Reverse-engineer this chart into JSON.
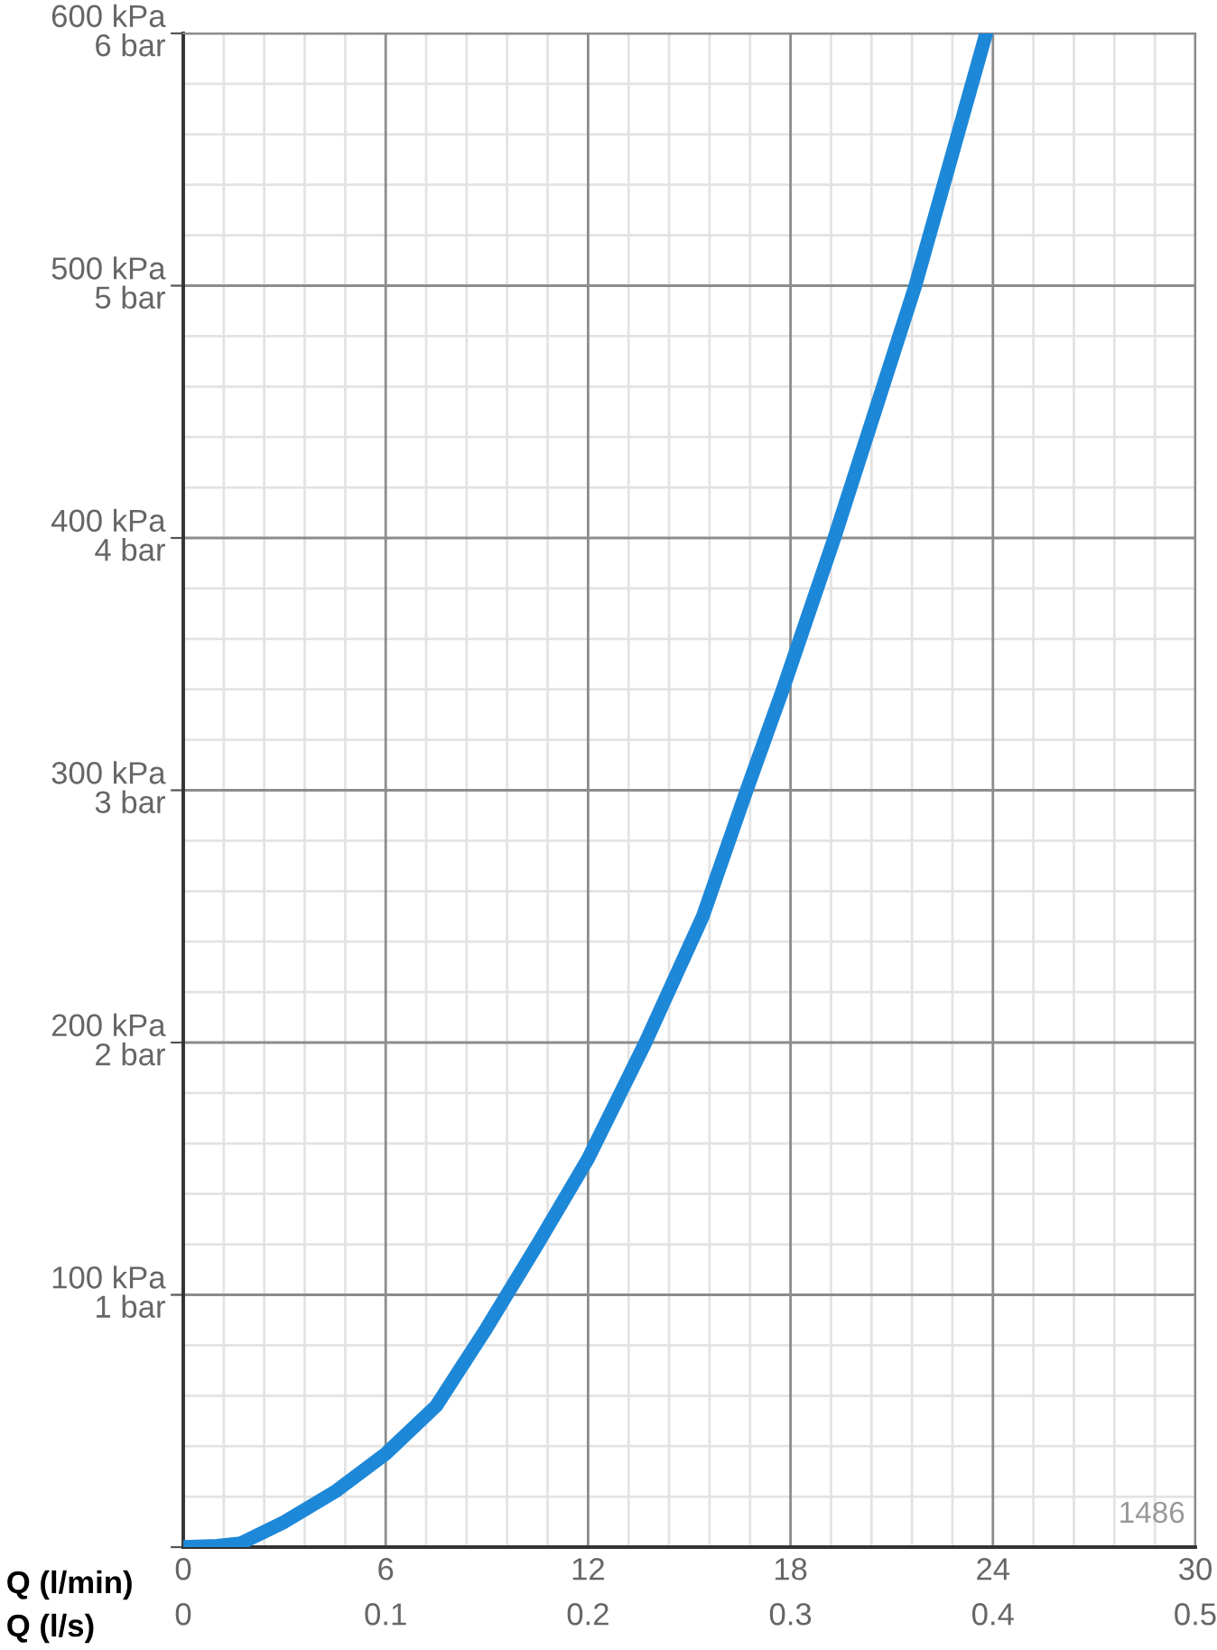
{
  "chart_data": {
    "type": "line",
    "xlabel": "Q (l/min)",
    "x2label": "Q (l/s)",
    "x": [
      0,
      1,
      1.7,
      3,
      4.5,
      6,
      7.5,
      9,
      10.5,
      12,
      13.7,
      15.4,
      16.7,
      17.8,
      19.3,
      21.7,
      23.8
    ],
    "series": [
      {
        "color": "#1e88d8",
        "values": [
          0,
          0.5,
          1.5,
          10,
          22,
          37,
          56,
          87,
          120,
          154,
          200,
          250,
          300,
          341,
          400,
          500,
          600
        ]
      }
    ],
    "xlim": [
      0,
      30
    ],
    "xticks": [
      0,
      6,
      12,
      18,
      24,
      30
    ],
    "x2lim": [
      0,
      0.5
    ],
    "x2ticks": [
      0,
      0.1,
      0.2,
      0.3,
      0.4,
      0.5
    ],
    "ylim": [
      0,
      600
    ],
    "yticks": [
      {
        "value": 0,
        "label": null
      },
      {
        "value": 100,
        "label": "100 kPa"
      },
      {
        "value": 200,
        "label": "200 kPa"
      },
      {
        "value": 300,
        "label": "300 kPa"
      },
      {
        "value": 400,
        "label": "400 kPa"
      },
      {
        "value": 500,
        "label": "500 kPa"
      },
      {
        "value": 600,
        "label": "600 kPa"
      }
    ],
    "y2lim": [
      0,
      6
    ],
    "y2ticks": [
      {
        "value": 1,
        "label": "1 bar"
      },
      {
        "value": 2,
        "label": "2 bar"
      },
      {
        "value": 3,
        "label": "3 bar"
      },
      {
        "value": 4,
        "label": "4 bar"
      },
      {
        "value": 5,
        "label": "5 bar"
      },
      {
        "value": 6,
        "label": "6 bar"
      }
    ],
    "grid": true,
    "marker": "none",
    "line_style": "solid",
    "legend": false,
    "annotations": [
      "1486"
    ]
  }
}
